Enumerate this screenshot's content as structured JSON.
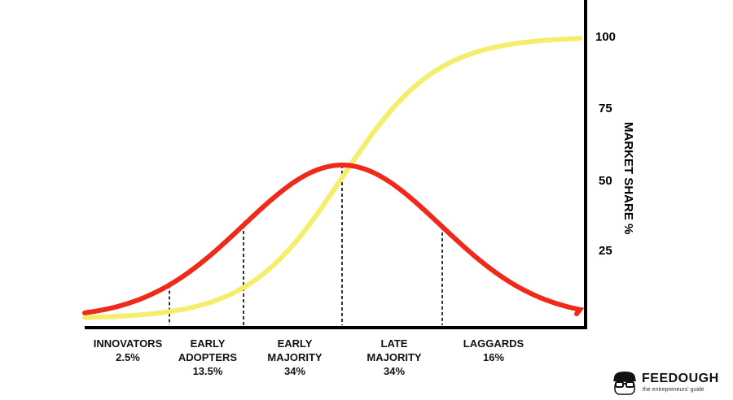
{
  "chart_data": {
    "type": "line",
    "ylabel": "MARKET SHARE %",
    "y_ticks": [
      "25",
      "50",
      "75",
      "100"
    ],
    "ylim": [
      0,
      100
    ],
    "categories": [
      {
        "line1": "INNOVATORS",
        "line2": "2.5%",
        "line3": ""
      },
      {
        "line1": "EARLY",
        "line2": "ADOPTERS",
        "line3": "13.5%"
      },
      {
        "line1": "EARLY",
        "line2": "MAJORITY",
        "line3": "34%"
      },
      {
        "line1": "LATE",
        "line2": "MAJORITY",
        "line3": "34%"
      },
      {
        "line1": "LAGGARDS",
        "line2": "16%",
        "line3": ""
      }
    ],
    "series": [
      {
        "color": "#ef2a1a",
        "shape": "bell curve (adoption rate)"
      },
      {
        "color": "#f4ee6a",
        "shape": "s-curve (cumulative market share)"
      }
    ]
  },
  "logo": {
    "name": "FEEDOUGH",
    "tagline": "the entrepreneurs' guide"
  }
}
